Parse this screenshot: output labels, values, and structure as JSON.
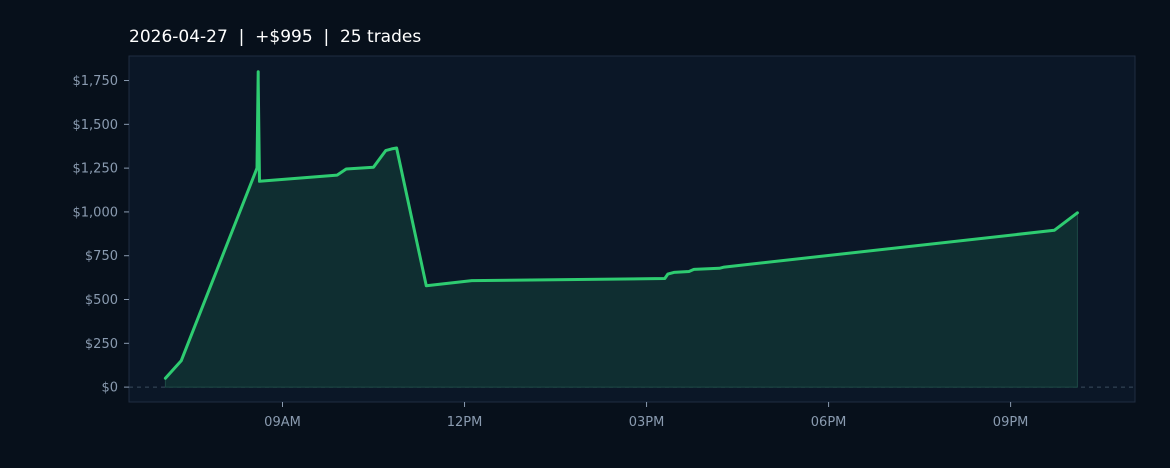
{
  "chart_data": {
    "type": "area",
    "title": "2026-04-27  |  +$995  |  25 trades",
    "xlabel": "",
    "ylabel": "",
    "x_ticks": [
      "09AM",
      "12PM",
      "03PM",
      "06PM",
      "09PM"
    ],
    "x_tick_hours": [
      9,
      12,
      15,
      18,
      21
    ],
    "y_ticks": [
      "$0",
      "$250",
      "$500",
      "$750",
      "$1,000",
      "$1,250",
      "$1,500",
      "$1,750"
    ],
    "y_tick_values": [
      0,
      250,
      500,
      750,
      1000,
      1250,
      1500,
      1750
    ],
    "ylim": [
      -85,
      1890
    ],
    "xlim": [
      6.47,
      23.05
    ],
    "grid": false,
    "zero_line": true,
    "series": [
      {
        "type": "line",
        "x": [
          7.07,
          7.33,
          8.58,
          8.6,
          8.6,
          8.62,
          9.9,
          10.05,
          10.5,
          10.7,
          10.8,
          10.88,
          11.37,
          12.12,
          15.3,
          15.35,
          15.45,
          15.7,
          15.78,
          16.2,
          16.28,
          21.72,
          22.1
        ],
        "values": [
          50,
          150,
          1250,
          1800,
          1750,
          1175,
          1210,
          1245,
          1255,
          1350,
          1360,
          1365,
          578,
          608,
          620,
          645,
          655,
          660,
          672,
          678,
          685,
          895,
          995
        ]
      }
    ]
  },
  "colors": {
    "background": "#07101b",
    "plot_background": "#0b1727",
    "line": "#2ecc71",
    "fill": "#0f2e31",
    "frame": "#1f2d40",
    "zero_line": "#3b4b5e",
    "tick_text": "#8a9bb0",
    "title_text": "#ffffff"
  }
}
